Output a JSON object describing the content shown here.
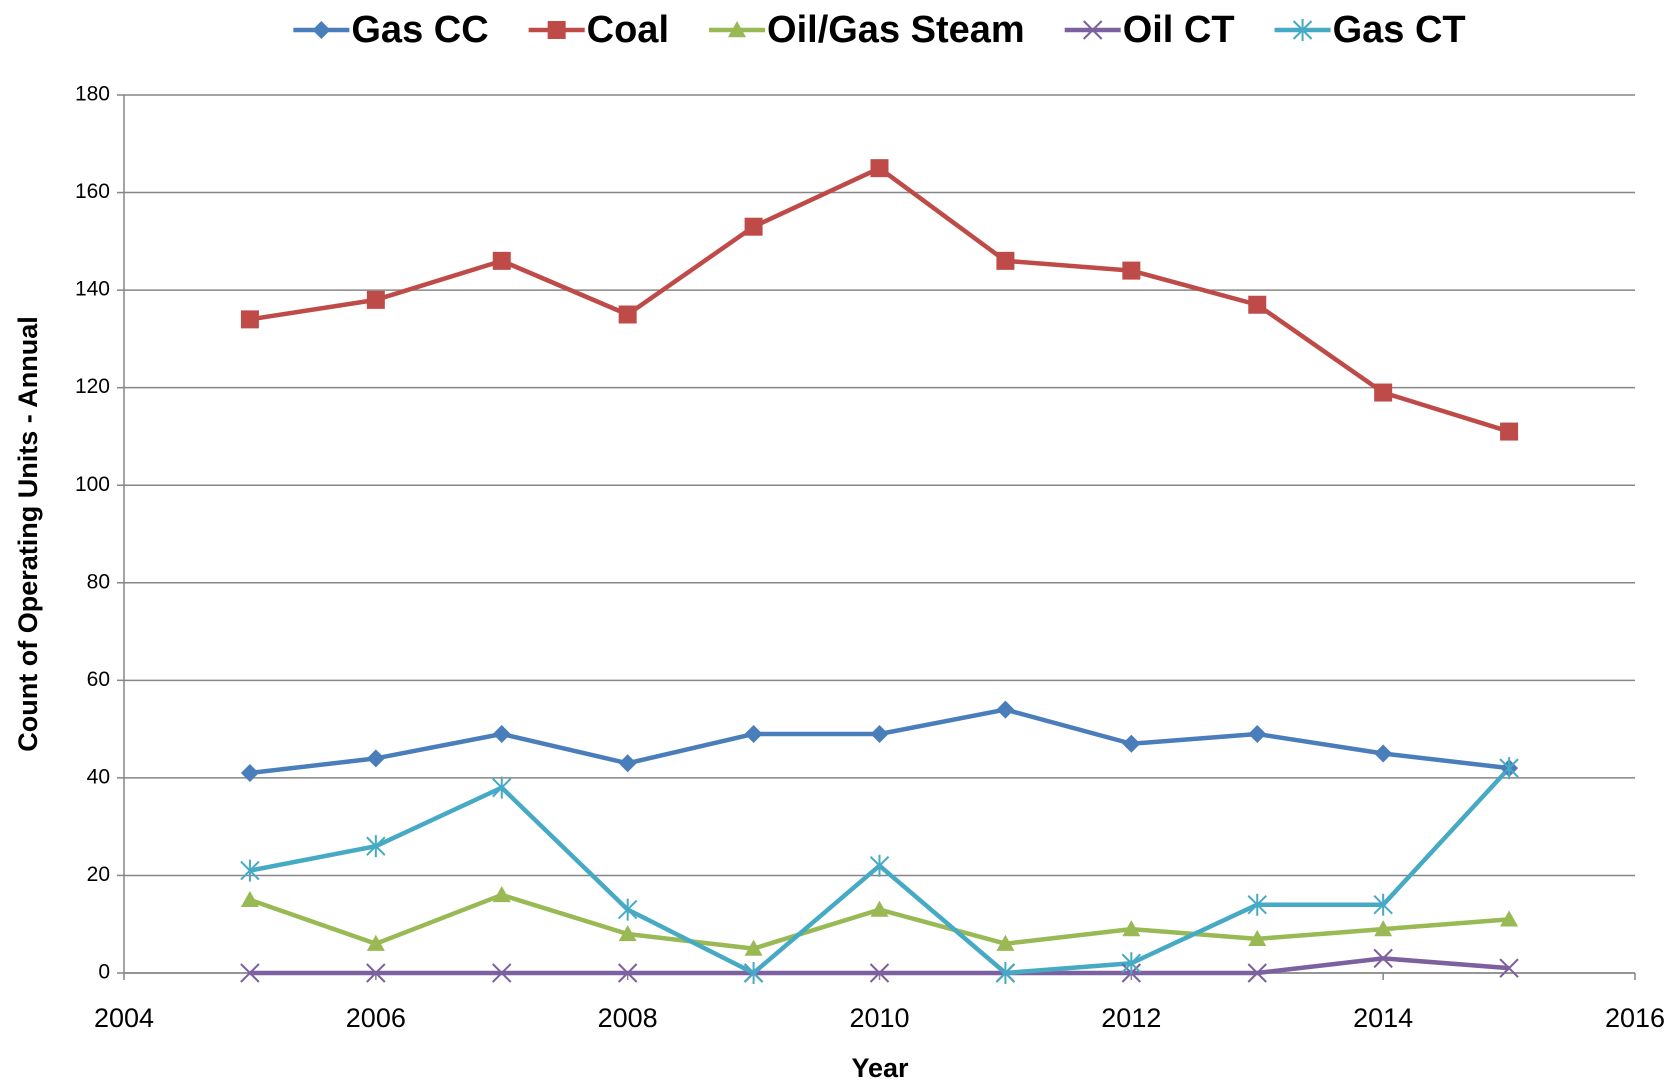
{
  "chart_data": {
    "type": "line",
    "x": [
      2005,
      2006,
      2007,
      2008,
      2009,
      2010,
      2011,
      2012,
      2013,
      2014,
      2015
    ],
    "series": [
      {
        "name": "Gas CC",
        "color": "#4a7ebb",
        "marker": "diamond",
        "values": [
          41,
          44,
          49,
          43,
          49,
          49,
          54,
          47,
          49,
          45,
          42
        ]
      },
      {
        "name": "Coal",
        "color": "#be4b48",
        "marker": "square",
        "values": [
          134,
          138,
          146,
          135,
          153,
          165,
          146,
          144,
          137,
          119,
          111
        ]
      },
      {
        "name": "Oil/Gas Steam",
        "color": "#98b954",
        "marker": "triangle",
        "values": [
          15,
          6,
          16,
          8,
          5,
          13,
          6,
          9,
          7,
          9,
          11
        ]
      },
      {
        "name": "Oil CT",
        "color": "#7d60a0",
        "marker": "x",
        "values": [
          0,
          0,
          0,
          0,
          0,
          0,
          0,
          0,
          0,
          3,
          1
        ]
      },
      {
        "name": "Gas CT",
        "color": "#46aac5",
        "marker": "asterisk",
        "values": [
          21,
          26,
          38,
          13,
          0,
          22,
          0,
          2,
          14,
          14,
          42
        ]
      }
    ],
    "xlabel": "Year",
    "ylabel": "Count of Operating Units - Annual",
    "xlim": [
      2004,
      2016
    ],
    "xticks": [
      2004,
      2006,
      2008,
      2010,
      2012,
      2014,
      2016
    ],
    "ylim": [
      0,
      180
    ],
    "yticks": [
      0,
      20,
      40,
      60,
      80,
      100,
      120,
      140,
      160,
      180
    ],
    "grid": true,
    "legend": "top"
  }
}
